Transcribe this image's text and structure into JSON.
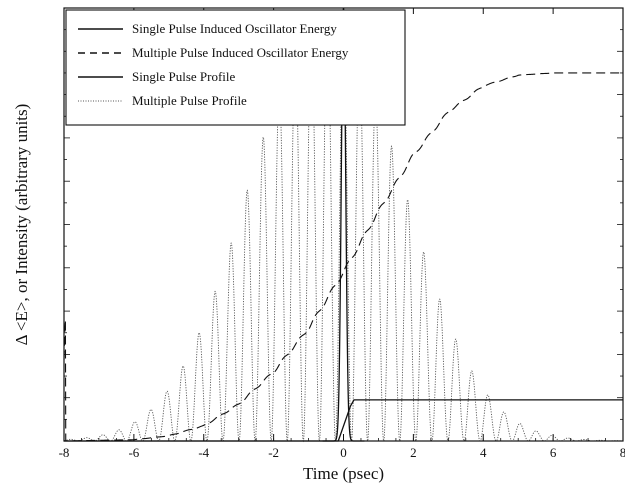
{
  "chart_data": {
    "type": "line",
    "xlabel": "Time (psec)",
    "ylabel": "Δ <E>, or Intensity (arbitrary units)",
    "xlim": [
      -8,
      8
    ],
    "ylim": [
      0,
      1
    ],
    "x_ticks": [
      -8,
      -6,
      -4,
      -2,
      0,
      2,
      4,
      6,
      8
    ],
    "x_tick_labels": [
      "-8",
      "-6",
      "-4",
      "-2",
      "0",
      "2",
      "4",
      "6",
      "8"
    ],
    "grid": false,
    "legend_position": "top-left",
    "series": [
      {
        "name": "Single Pulse Induced Oscillator Energy",
        "style": "solid",
        "description_values": {
          "baseline": 0,
          "step_time": 0.1,
          "final_level": 0.095
        }
      },
      {
        "name": "Multiple Pulse Induced Oscillator Energy",
        "style": "dashed",
        "points": [
          [
            -8,
            0
          ],
          [
            -6,
            0.003
          ],
          [
            -5,
            0.012
          ],
          [
            -4,
            0.035
          ],
          [
            -3,
            0.085
          ],
          [
            -2,
            0.16
          ],
          [
            -1,
            0.26
          ],
          [
            0,
            0.39
          ],
          [
            1,
            0.53
          ],
          [
            2,
            0.66
          ],
          [
            3,
            0.76
          ],
          [
            4,
            0.82
          ],
          [
            5,
            0.845
          ],
          [
            6,
            0.85
          ],
          [
            8,
            0.85
          ]
        ]
      },
      {
        "name": "Single Pulse Profile",
        "style": "solid",
        "description_values": {
          "center": 0,
          "peak": 1.0,
          "fwhm": 0.15
        }
      },
      {
        "name": "Multiple Pulse Profile",
        "style": "dotted",
        "description_values": {
          "period": 0.46,
          "envelope_peak": 0.98,
          "envelope_center": -0.5,
          "envelope_sigma": 2.2
        }
      }
    ]
  }
}
